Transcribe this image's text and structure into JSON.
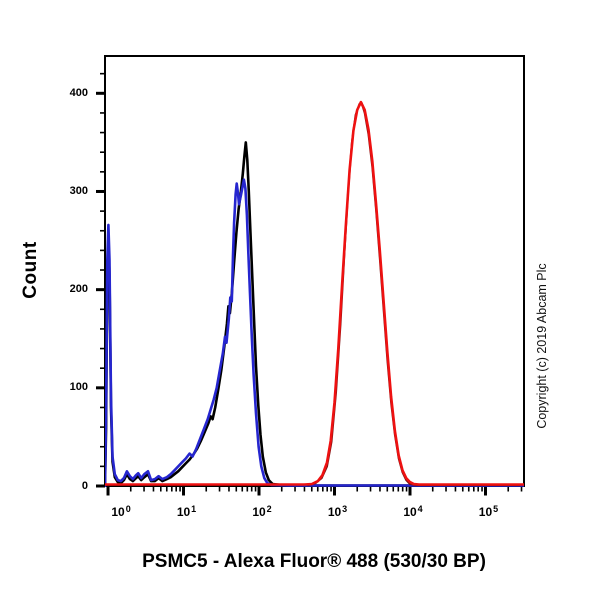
{
  "title": "PSMC5 - Alexa Fluor® 488 (530/30 BP)",
  "copyright": "Copyright (c) 2019 Abcam Plc",
  "chart_data": {
    "type": "line",
    "subtype": "flow-cytometry-histogram",
    "title": "",
    "xlabel": "PSMC5 - Alexa Fluor® 488 (530/30 BP)",
    "ylabel": "Count",
    "x_scale": "log10",
    "xlim_log10": [
      -0.04,
      5.51
    ],
    "ylim": [
      0,
      438
    ],
    "grid": false,
    "legend": "none",
    "frame_color": "#000000",
    "x_major_ticks_log10": [
      0,
      1,
      2,
      3,
      4,
      5
    ],
    "x_tick_labels": [
      {
        "base": "10",
        "exp": "0"
      },
      {
        "base": "10",
        "exp": "1"
      },
      {
        "base": "10",
        "exp": "2"
      },
      {
        "base": "10",
        "exp": "3"
      },
      {
        "base": "10",
        "exp": "4"
      },
      {
        "base": "10",
        "exp": "5"
      }
    ],
    "y_major_ticks": [
      0,
      100,
      200,
      300,
      400
    ],
    "y_minor_step": 20,
    "series": [
      {
        "name": "control-black",
        "color": "#000000",
        "width": 2.6,
        "points": [
          [
            -0.04,
            0
          ],
          [
            -0.025,
            60
          ],
          [
            -0.01,
            215
          ],
          [
            0.005,
            250
          ],
          [
            0.02,
            215
          ],
          [
            0.04,
            80
          ],
          [
            0.06,
            25
          ],
          [
            0.09,
            9
          ],
          [
            0.13,
            4
          ],
          [
            0.17,
            3
          ],
          [
            0.21,
            6
          ],
          [
            0.25,
            12
          ],
          [
            0.29,
            7
          ],
          [
            0.33,
            5
          ],
          [
            0.37,
            8
          ],
          [
            0.4,
            10
          ],
          [
            0.44,
            6
          ],
          [
            0.48,
            9
          ],
          [
            0.53,
            12
          ],
          [
            0.57,
            5
          ],
          [
            0.62,
            5
          ],
          [
            0.67,
            8
          ],
          [
            0.72,
            5
          ],
          [
            0.78,
            7
          ],
          [
            0.83,
            9
          ],
          [
            0.88,
            12
          ],
          [
            0.93,
            15
          ],
          [
            0.98,
            19
          ],
          [
            1.03,
            23
          ],
          [
            1.08,
            27
          ],
          [
            1.13,
            32
          ],
          [
            1.18,
            38
          ],
          [
            1.23,
            46
          ],
          [
            1.28,
            55
          ],
          [
            1.33,
            64
          ],
          [
            1.36,
            71
          ],
          [
            1.385,
            68
          ],
          [
            1.42,
            80
          ],
          [
            1.46,
            98
          ],
          [
            1.5,
            118
          ],
          [
            1.54,
            142
          ],
          [
            1.575,
            165
          ],
          [
            1.595,
            183
          ],
          [
            1.615,
            176
          ],
          [
            1.64,
            196
          ],
          [
            1.67,
            228
          ],
          [
            1.7,
            258
          ],
          [
            1.73,
            282
          ],
          [
            1.76,
            300
          ],
          [
            1.785,
            318
          ],
          [
            1.805,
            335
          ],
          [
            1.825,
            350
          ],
          [
            1.845,
            332
          ],
          [
            1.865,
            300
          ],
          [
            1.885,
            262
          ],
          [
            1.91,
            215
          ],
          [
            1.935,
            168
          ],
          [
            1.96,
            122
          ],
          [
            1.99,
            82
          ],
          [
            2.02,
            52
          ],
          [
            2.05,
            30
          ],
          [
            2.09,
            14
          ],
          [
            2.13,
            6
          ],
          [
            2.18,
            2
          ],
          [
            2.3,
            1
          ],
          [
            2.6,
            0.5
          ],
          [
            3.5,
            0.5
          ],
          [
            4.5,
            0.5
          ],
          [
            5.51,
            0.5
          ]
        ]
      },
      {
        "name": "control-blue",
        "color": "#2626cf",
        "width": 2.6,
        "points": [
          [
            -0.04,
            0
          ],
          [
            -0.025,
            80
          ],
          [
            -0.01,
            230
          ],
          [
            0.005,
            266
          ],
          [
            0.02,
            230
          ],
          [
            0.04,
            90
          ],
          [
            0.06,
            30
          ],
          [
            0.09,
            12
          ],
          [
            0.13,
            6
          ],
          [
            0.17,
            5
          ],
          [
            0.21,
            8
          ],
          [
            0.25,
            15
          ],
          [
            0.29,
            10
          ],
          [
            0.33,
            7
          ],
          [
            0.37,
            11
          ],
          [
            0.4,
            13
          ],
          [
            0.44,
            8
          ],
          [
            0.48,
            12
          ],
          [
            0.53,
            15
          ],
          [
            0.57,
            6
          ],
          [
            0.62,
            7
          ],
          [
            0.67,
            10
          ],
          [
            0.72,
            7
          ],
          [
            0.78,
            9
          ],
          [
            0.83,
            12
          ],
          [
            0.88,
            16
          ],
          [
            0.93,
            20
          ],
          [
            0.98,
            24
          ],
          [
            1.03,
            28
          ],
          [
            1.08,
            33
          ],
          [
            1.12,
            30
          ],
          [
            1.17,
            38
          ],
          [
            1.22,
            48
          ],
          [
            1.27,
            58
          ],
          [
            1.32,
            68
          ],
          [
            1.36,
            78
          ],
          [
            1.4,
            88
          ],
          [
            1.44,
            100
          ],
          [
            1.48,
            118
          ],
          [
            1.52,
            135
          ],
          [
            1.55,
            152
          ],
          [
            1.57,
            146
          ],
          [
            1.6,
            170
          ],
          [
            1.62,
            192
          ],
          [
            1.64,
            188
          ],
          [
            1.655,
            235
          ],
          [
            1.67,
            268
          ],
          [
            1.69,
            297
          ],
          [
            1.705,
            308
          ],
          [
            1.72,
            299
          ],
          [
            1.735,
            287
          ],
          [
            1.76,
            296
          ],
          [
            1.78,
            304
          ],
          [
            1.8,
            312
          ],
          [
            1.82,
            303
          ],
          [
            1.84,
            276
          ],
          [
            1.86,
            236
          ],
          [
            1.88,
            196
          ],
          [
            1.905,
            152
          ],
          [
            1.93,
            112
          ],
          [
            1.96,
            74
          ],
          [
            1.995,
            40
          ],
          [
            2.03,
            20
          ],
          [
            2.07,
            8
          ],
          [
            2.11,
            3
          ],
          [
            2.17,
            1
          ],
          [
            2.4,
            0.5
          ],
          [
            3.0,
            0.5
          ],
          [
            4.0,
            0.5
          ],
          [
            5.51,
            0.5
          ]
        ]
      },
      {
        "name": "psmc5-dark-red",
        "color": "#7a1212",
        "width": 2,
        "points": [
          [
            2.65,
            1
          ],
          [
            2.75,
            3
          ],
          [
            2.83,
            8
          ],
          [
            2.9,
            20
          ],
          [
            2.96,
            45
          ],
          [
            3.02,
            95
          ],
          [
            3.08,
            165
          ],
          [
            3.13,
            235
          ],
          [
            3.18,
            300
          ],
          [
            3.23,
            350
          ],
          [
            3.28,
            378
          ],
          [
            3.33,
            389
          ],
          [
            3.36,
            390
          ],
          [
            3.4,
            380
          ],
          [
            3.45,
            358
          ],
          [
            3.5,
            325
          ],
          [
            3.55,
            282
          ],
          [
            3.6,
            232
          ],
          [
            3.65,
            180
          ],
          [
            3.7,
            128
          ],
          [
            3.75,
            85
          ],
          [
            3.8,
            52
          ],
          [
            3.85,
            28
          ],
          [
            3.9,
            14
          ],
          [
            3.95,
            6
          ],
          [
            4.0,
            2
          ],
          [
            4.08,
            1
          ],
          [
            5.45,
            1
          ]
        ]
      },
      {
        "name": "psmc5-red",
        "color": "#ee1111",
        "width": 2.6,
        "points": [
          [
            -0.04,
            1.5
          ],
          [
            0.5,
            1.5
          ],
          [
            1.0,
            1.5
          ],
          [
            1.5,
            1.5
          ],
          [
            2.0,
            1.5
          ],
          [
            2.4,
            1.5
          ],
          [
            2.6,
            1.5
          ],
          [
            2.7,
            2
          ],
          [
            2.78,
            5
          ],
          [
            2.84,
            11
          ],
          [
            2.9,
            24
          ],
          [
            2.95,
            46
          ],
          [
            3.0,
            85
          ],
          [
            3.05,
            140
          ],
          [
            3.1,
            205
          ],
          [
            3.15,
            265
          ],
          [
            3.2,
            322
          ],
          [
            3.25,
            362
          ],
          [
            3.3,
            383
          ],
          [
            3.35,
            391
          ],
          [
            3.4,
            383
          ],
          [
            3.45,
            363
          ],
          [
            3.5,
            331
          ],
          [
            3.55,
            288
          ],
          [
            3.6,
            240
          ],
          [
            3.65,
            188
          ],
          [
            3.7,
            136
          ],
          [
            3.75,
            91
          ],
          [
            3.8,
            56
          ],
          [
            3.85,
            31
          ],
          [
            3.9,
            16
          ],
          [
            3.95,
            8
          ],
          [
            4.0,
            4
          ],
          [
            4.05,
            2
          ],
          [
            4.12,
            1.5
          ],
          [
            4.5,
            1.5
          ],
          [
            5.0,
            1.5
          ],
          [
            5.51,
            1.5
          ]
        ]
      }
    ]
  }
}
